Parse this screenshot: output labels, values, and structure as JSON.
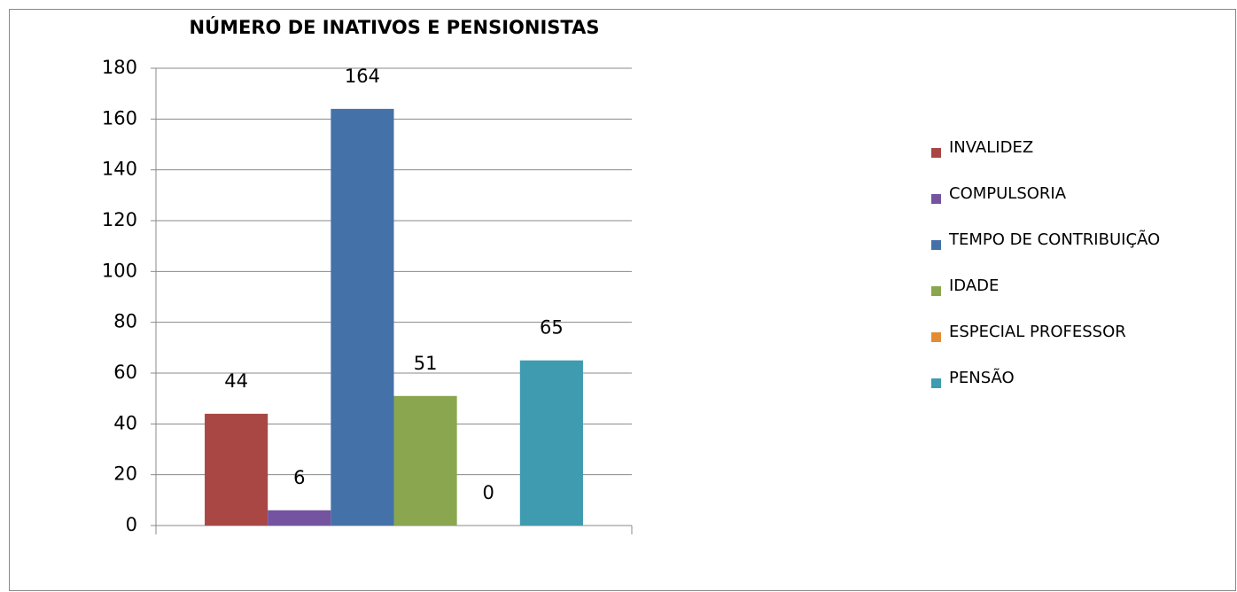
{
  "chart_data": {
    "type": "bar",
    "title": "NÚMERO DE INATIVOS E PENSIONISTAS",
    "categories": [
      null
    ],
    "series": [
      {
        "name": "INVALIDEZ",
        "color": "#a94745",
        "values": [
          44
        ]
      },
      {
        "name": "COMPULSORIA",
        "color": "#7453a0",
        "values": [
          6
        ]
      },
      {
        "name": "TEMPO DE CONTRIBUIÇÃO",
        "color": "#4472a8",
        "values": [
          164
        ]
      },
      {
        "name": "IDADE",
        "color": "#8aa64f",
        "values": [
          51
        ]
      },
      {
        "name": "ESPECIAL PROFESSOR",
        "color": "#e38c32",
        "values": [
          0
        ]
      },
      {
        "name": "PENSÃO",
        "color": "#3e9bb0",
        "values": [
          65
        ]
      }
    ],
    "ylim": [
      0,
      180
    ],
    "yticks": [
      0,
      20,
      40,
      60,
      80,
      100,
      120,
      140,
      160,
      180
    ],
    "grid": true,
    "legend": "right"
  }
}
